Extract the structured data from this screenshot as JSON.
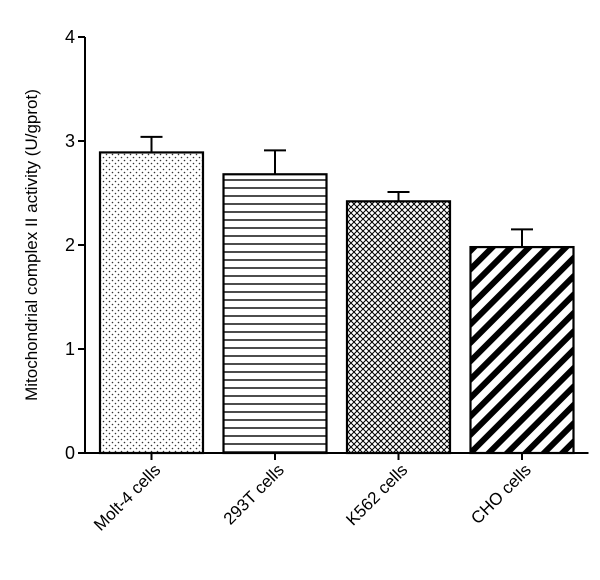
{
  "chart_data": {
    "type": "bar",
    "title": "",
    "xlabel": "",
    "ylabel": "Mitochondrial complex II activity (U/gprot)",
    "categories": [
      "Molt-4 cells",
      "293T cells",
      "K562 cells",
      "CHO cells"
    ],
    "values": [
      2.89,
      2.68,
      2.42,
      1.98
    ],
    "errors": [
      0.15,
      0.23,
      0.09,
      0.17
    ],
    "ylim": [
      0,
      4
    ],
    "yticks": [
      0,
      1,
      2,
      3,
      4
    ],
    "patterns": [
      "dots",
      "horizontal-lines",
      "crosshatch",
      "thick-diagonal"
    ],
    "bar_color": "#000000",
    "grid": false,
    "legend": "none"
  }
}
